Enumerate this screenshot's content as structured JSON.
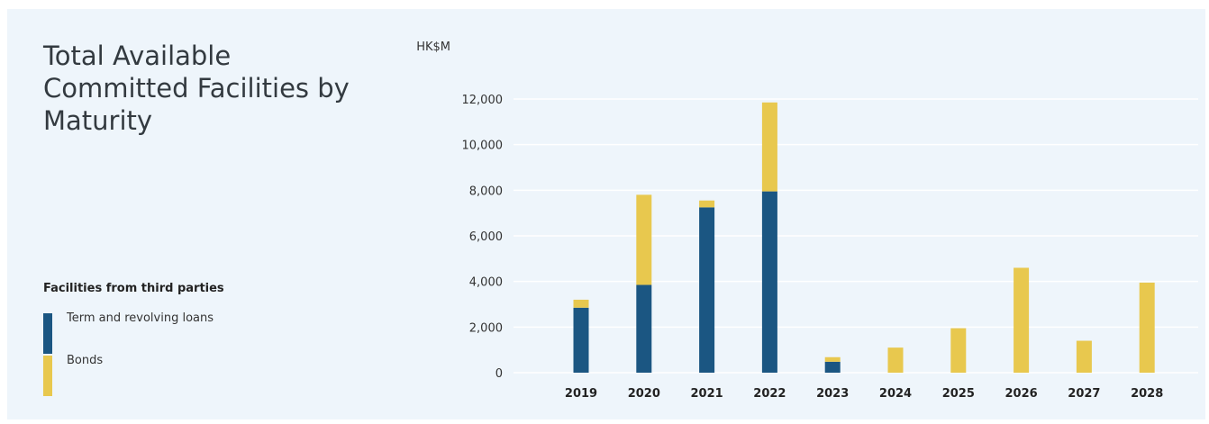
{
  "title_lines": [
    "Total Available",
    "Committed Facilities by",
    "Maturity"
  ],
  "legend": {
    "heading": "Facilities from third parties",
    "items": [
      {
        "label": "Term and revolving loans",
        "color": "#1b5682"
      },
      {
        "label": "Bonds",
        "color": "#e8c84e"
      }
    ]
  },
  "chart_data": {
    "type": "bar",
    "stacked": true,
    "unit_label": "HK$M",
    "categories": [
      "2019",
      "2020",
      "2021",
      "2022",
      "2023",
      "2024",
      "2025",
      "2026",
      "2027",
      "2028"
    ],
    "series": [
      {
        "name": "Term and revolving loans",
        "color": "#1b5682",
        "values": [
          2850,
          3850,
          7250,
          7950,
          480,
          0,
          0,
          0,
          0,
          0
        ]
      },
      {
        "name": "Bonds",
        "color": "#e8c84e",
        "values": [
          350,
          3950,
          300,
          3900,
          200,
          1100,
          1950,
          4600,
          1400,
          3950
        ]
      }
    ],
    "ylim": [
      0,
      12000
    ],
    "yticks": [
      0,
      2000,
      4000,
      6000,
      8000,
      10000,
      12000
    ],
    "ytick_labels": [
      "0",
      "2,000",
      "4,000",
      "6,000",
      "8,000",
      "10,000",
      "12,000"
    ],
    "grid": true
  }
}
